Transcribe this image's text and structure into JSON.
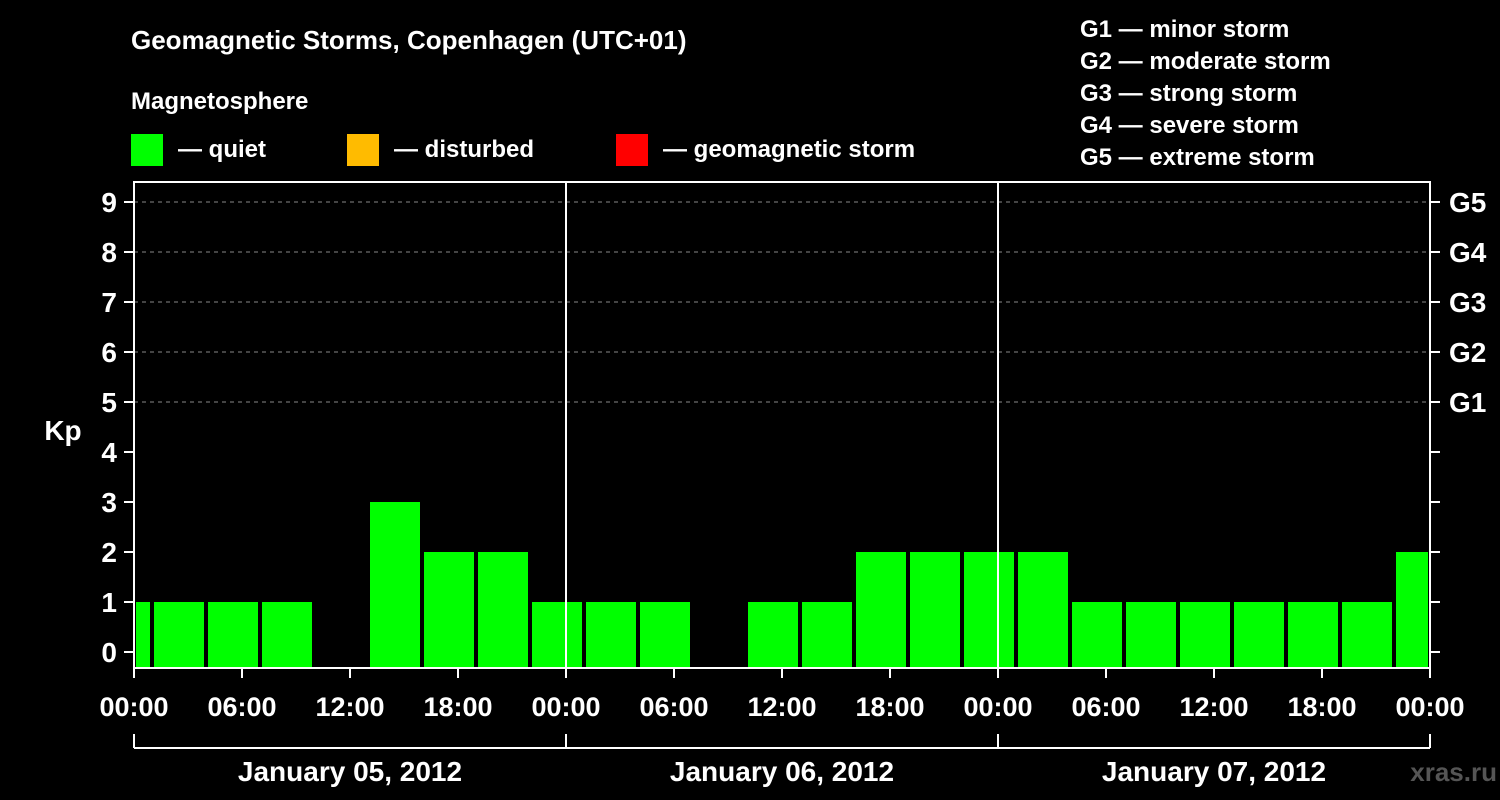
{
  "chart_data": {
    "type": "bar",
    "title": "Geomagnetic Storms, Copenhagen (UTC+01)",
    "ylabel": "Kp",
    "ylim": [
      0,
      9
    ],
    "yticks": [
      "0",
      "1",
      "2",
      "3",
      "4",
      "5",
      "6",
      "7",
      "8",
      "9"
    ],
    "right_axis_labels": [
      {
        "kp": 5,
        "label": "G1"
      },
      {
        "kp": 6,
        "label": "G2"
      },
      {
        "kp": 7,
        "label": "G3"
      },
      {
        "kp": 8,
        "label": "G4"
      },
      {
        "kp": 9,
        "label": "G5"
      }
    ],
    "x_range_hours": [
      0,
      72
    ],
    "x_tick_labels": [
      {
        "hour": 0,
        "label": "00:00"
      },
      {
        "hour": 6,
        "label": "06:00"
      },
      {
        "hour": 12,
        "label": "12:00"
      },
      {
        "hour": 18,
        "label": "18:00"
      },
      {
        "hour": 24,
        "label": "00:00"
      },
      {
        "hour": 30,
        "label": "06:00"
      },
      {
        "hour": 36,
        "label": "12:00"
      },
      {
        "hour": 42,
        "label": "18:00"
      },
      {
        "hour": 48,
        "label": "00:00"
      },
      {
        "hour": 54,
        "label": "06:00"
      },
      {
        "hour": 60,
        "label": "12:00"
      },
      {
        "hour": 66,
        "label": "18:00"
      },
      {
        "hour": 72,
        "label": "00:00"
      }
    ],
    "days": [
      {
        "label": "January 05, 2012",
        "start_hour": 0
      },
      {
        "label": "January 06, 2012",
        "start_hour": 24
      },
      {
        "label": "January 07, 2012",
        "start_hour": 48
      }
    ],
    "bar_unit_hours": 3,
    "bars": [
      {
        "start": 0,
        "end": 1,
        "kp": 1
      },
      {
        "start": 1,
        "end": 4,
        "kp": 1
      },
      {
        "start": 4,
        "end": 7,
        "kp": 1
      },
      {
        "start": 7,
        "end": 10,
        "kp": 1
      },
      {
        "start": 10,
        "end": 13,
        "kp": 0
      },
      {
        "start": 13,
        "end": 16,
        "kp": 3
      },
      {
        "start": 16,
        "end": 19,
        "kp": 2
      },
      {
        "start": 19,
        "end": 22,
        "kp": 2
      },
      {
        "start": 22,
        "end": 25,
        "kp": 1
      },
      {
        "start": 25,
        "end": 28,
        "kp": 1
      },
      {
        "start": 28,
        "end": 31,
        "kp": 1
      },
      {
        "start": 31,
        "end": 34,
        "kp": 0
      },
      {
        "start": 34,
        "end": 37,
        "kp": 1
      },
      {
        "start": 37,
        "end": 40,
        "kp": 1
      },
      {
        "start": 40,
        "end": 43,
        "kp": 2
      },
      {
        "start": 43,
        "end": 46,
        "kp": 2
      },
      {
        "start": 46,
        "end": 49,
        "kp": 2
      },
      {
        "start": 49,
        "end": 52,
        "kp": 2
      },
      {
        "start": 52,
        "end": 55,
        "kp": 1
      },
      {
        "start": 55,
        "end": 58,
        "kp": 1
      },
      {
        "start": 58,
        "end": 61,
        "kp": 1
      },
      {
        "start": 61,
        "end": 64,
        "kp": 1
      },
      {
        "start": 64,
        "end": 67,
        "kp": 1
      },
      {
        "start": 67,
        "end": 70,
        "kp": 1
      },
      {
        "start": 70,
        "end": 72,
        "kp": 2
      }
    ],
    "legend_title": "Magnetosphere",
    "legend": [
      {
        "label": "— quiet",
        "color": "#00ff00"
      },
      {
        "label": "— disturbed",
        "color": "#ffbb00"
      },
      {
        "label": "— geomagnetic storm",
        "color": "#ff0000"
      }
    ],
    "storm_scale": [
      "G1 — minor storm",
      "G2 — moderate storm",
      "G3 — strong storm",
      "G4 — severe storm",
      "G5 — extreme storm"
    ],
    "watermark": "xras.ru"
  },
  "colors": {
    "background": "#000000",
    "foreground": "#ffffff",
    "grid": "#888888",
    "quiet": "#00ff00",
    "disturbed": "#ffbb00",
    "storm": "#ff0000",
    "watermark": "#555555"
  }
}
